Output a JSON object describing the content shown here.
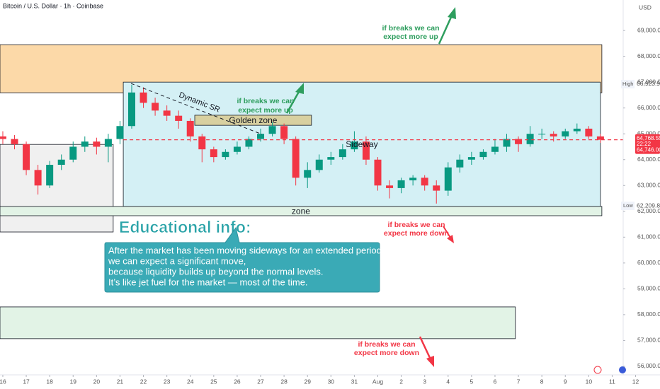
{
  "chart_data": {
    "type": "candlestick",
    "title": "Bitcoin / U.S. Dollar · 1h · Coinbase",
    "currency": "USD",
    "up_color": "#089981",
    "down_color": "#f23645",
    "x": [
      0,
      0.5,
      1,
      1.5,
      2,
      2.5,
      3,
      3.5,
      4,
      4.5,
      5,
      5.5,
      6,
      6.5,
      7,
      7.5,
      8,
      8.5,
      9,
      9.5,
      10,
      10.5,
      11,
      11.5,
      12,
      12.5,
      13,
      13.5,
      14,
      14.5,
      15,
      15.5,
      16,
      16.5,
      17,
      17.5,
      18,
      18.5,
      19,
      19.5,
      20,
      20.5,
      21,
      21.5,
      22,
      22.5,
      23,
      23.5,
      24,
      24.5,
      25,
      25.5
    ],
    "open": [
      64900,
      64800,
      64600,
      63600,
      63000,
      63800,
      64000,
      64500,
      64700,
      64500,
      64800,
      65300,
      66600,
      66200,
      65900,
      65700,
      65500,
      64900,
      64400,
      64100,
      64300,
      64500,
      64800,
      65000,
      65300,
      64800,
      63300,
      63600,
      64000,
      64100,
      64400,
      64700,
      64000,
      63000,
      62900,
      63200,
      63300,
      63000,
      62800,
      63700,
      64000,
      64100,
      64300,
      64500,
      64800,
      64600,
      65000,
      65000,
      64900,
      65100,
      65200,
      64900
    ],
    "high": [
      65100,
      64950,
      64700,
      63800,
      63950,
      64200,
      64700,
      64900,
      64850,
      65000,
      65500,
      66900,
      66800,
      66400,
      66100,
      65900,
      65600,
      65000,
      64500,
      64400,
      64700,
      64900,
      65200,
      65450,
      65400,
      64900,
      63900,
      64200,
      64300,
      64600,
      65100,
      64900,
      64100,
      63200,
      63300,
      63400,
      63400,
      63200,
      63900,
      64200,
      64300,
      64400,
      64800,
      65000,
      64900,
      65300,
      65200,
      65100,
      65200,
      65400,
      65300,
      65000
    ],
    "low": [
      64600,
      64400,
      63400,
      62650,
      62900,
      63600,
      63900,
      64300,
      64200,
      63900,
      64600,
      65200,
      66000,
      65700,
      65500,
      65200,
      64700,
      63900,
      63900,
      64000,
      64200,
      64400,
      64700,
      64900,
      64600,
      63000,
      62900,
      63500,
      63800,
      64000,
      64300,
      63800,
      62800,
      62500,
      62700,
      63000,
      62800,
      62300,
      62600,
      63500,
      63800,
      64000,
      64200,
      64300,
      64300,
      64500,
      64800,
      64700,
      64800,
      65000,
      64800,
      64650
    ],
    "close": [
      64800,
      64600,
      63600,
      63000,
      63800,
      64000,
      64500,
      64700,
      64500,
      64800,
      65300,
      66600,
      66200,
      65900,
      65700,
      65500,
      64900,
      64400,
      64100,
      64300,
      64500,
      64800,
      65000,
      65300,
      64800,
      63300,
      63600,
      64000,
      64100,
      64400,
      64700,
      64000,
      63000,
      62900,
      63200,
      63300,
      63000,
      62800,
      63700,
      64000,
      64100,
      64300,
      64500,
      64800,
      64600,
      65000,
      65000,
      64900,
      65100,
      65200,
      64900,
      64770
    ],
    "xlim": [
      -0.12,
      26.47
    ],
    "ylim": [
      55670,
      70180
    ],
    "xticks": [
      {
        "value": 0,
        "label": "16"
      },
      {
        "value": 1,
        "label": "17"
      },
      {
        "value": 2,
        "label": "18"
      },
      {
        "value": 3,
        "label": "19"
      },
      {
        "value": 4,
        "label": "20"
      },
      {
        "value": 5,
        "label": "21"
      },
      {
        "value": 6,
        "label": "22"
      },
      {
        "value": 7,
        "label": "23"
      },
      {
        "value": 8,
        "label": "24"
      },
      {
        "value": 9,
        "label": "25"
      },
      {
        "value": 10,
        "label": "26"
      },
      {
        "value": 11,
        "label": "27"
      },
      {
        "value": 12,
        "label": "28"
      },
      {
        "value": 13,
        "label": "29"
      },
      {
        "value": 14,
        "label": "30"
      },
      {
        "value": 15,
        "label": "31"
      },
      {
        "value": 16,
        "label": "Aug"
      },
      {
        "value": 17,
        "label": "2"
      },
      {
        "value": 18,
        "label": "3"
      },
      {
        "value": 19,
        "label": "4"
      },
      {
        "value": 20,
        "label": "5"
      },
      {
        "value": 21,
        "label": "6"
      },
      {
        "value": 22,
        "label": "7"
      },
      {
        "value": 23,
        "label": "8"
      },
      {
        "value": 24,
        "label": "9"
      },
      {
        "value": 25,
        "label": "10"
      },
      {
        "value": 26,
        "label": "11"
      },
      {
        "value": 27,
        "label": "12"
      }
    ],
    "yticks": [
      {
        "value": 69000,
        "label": "69,000.00"
      },
      {
        "value": 68000,
        "label": "68,000.00"
      },
      {
        "value": 67000,
        "label": "67,000.00"
      },
      {
        "value": 66000,
        "label": "66,000.00"
      },
      {
        "value": 65000,
        "label": "65,000.00"
      },
      {
        "value": 64000,
        "label": "64,000.00"
      },
      {
        "value": 63000,
        "label": "63,000.00"
      },
      {
        "value": 62000,
        "label": "62,000.00"
      },
      {
        "value": 61000,
        "label": "61,000.00"
      },
      {
        "value": 60000,
        "label": "60,000.00"
      },
      {
        "value": 59000,
        "label": "59,000.00"
      },
      {
        "value": 58000,
        "label": "58,000.00"
      },
      {
        "value": 57000,
        "label": "57,000.00"
      },
      {
        "value": 56000,
        "label": "56,000.00"
      }
    ],
    "zones": [
      {
        "top": 68450,
        "bottom": 66590,
        "start": -0.12,
        "end": 25.56,
        "color": "#fcd9a8"
      },
      {
        "top": 64590,
        "bottom": 61200,
        "start": -0.12,
        "end": 4.71,
        "color": "#f0f0f0"
      },
      {
        "top": 67000,
        "bottom": 62190,
        "start": 5.14,
        "end": 25.5,
        "color": "#d4f0f5",
        "label": "Sideway"
      },
      {
        "top": 65720,
        "bottom": 65330,
        "start": 8.19,
        "end": 13.17,
        "color": "#d8d0a0",
        "label": "Golden zone"
      },
      {
        "top": 62190,
        "bottom": 61830,
        "start": -0.12,
        "end": 25.56,
        "color": "#e2f3e6",
        "label": "zone"
      },
      {
        "top": 58300,
        "bottom": 57070,
        "start": -0.12,
        "end": 21.87,
        "color": "#e2f3e6"
      }
    ],
    "trendline": {
      "label": "Dynamic SR",
      "start": [
        5.47,
        66950
      ],
      "end": [
        11.06,
        64980
      ]
    },
    "price_labels": [
      {
        "name": "High",
        "value": 66923.95,
        "label": "66,923.95"
      },
      {
        "value": 64768.55,
        "label": "64,768.55",
        "countdown": "22:22"
      },
      {
        "value": 64746.0,
        "label": "64,746.00"
      },
      {
        "name": "Low",
        "value": 62209.81,
        "label": "62,209.81"
      }
    ],
    "annotations": {
      "up_top": [
        "if breaks we can",
        "expect more up"
      ],
      "up_mid": [
        "if breaks we can",
        "expect more up"
      ],
      "down_mid": [
        "if breaks we can",
        "expect more down"
      ],
      "down_bottom": [
        "if breaks we can",
        "expect more down"
      ],
      "edu_title": "Educational info:",
      "edu_lines": [
        "After the market has been moving sideways for an extended period,",
        "we can expect a significant move,",
        "because liquidity builds up beyond the normal levels.",
        "It’s like jet fuel for the market — most of the time."
      ]
    }
  }
}
